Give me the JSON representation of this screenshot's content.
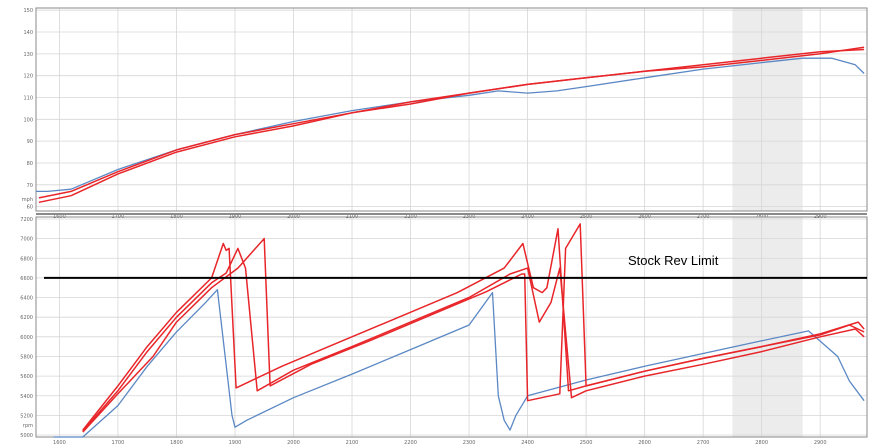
{
  "colors": {
    "background": "#ffffff",
    "grid": "#d6d6d6",
    "axis": "#8a8a8a",
    "highlight_band": "#ececec",
    "blue_series": "#5b88c4",
    "red_series": "#e8262a",
    "marker_dark": "#8b1c1c",
    "marker_blue": "#2b2fa0",
    "limit_line": "#000000"
  },
  "chart_data": [
    {
      "type": "line",
      "panel": "speed",
      "x_ticks": [
        "1600",
        "1700",
        "1800",
        "1900",
        "2000",
        "2100",
        "2200",
        "2300",
        "2400",
        "2500",
        "2600",
        "2700",
        "2800",
        "2900"
      ],
      "y_ticks": [
        "60",
        "70",
        "80",
        "90",
        "100",
        "110",
        "120",
        "130",
        "140",
        "150"
      ],
      "y_unit": "mph",
      "xlim": [
        1560,
        2980
      ],
      "ylim": [
        58,
        151
      ],
      "grid": true,
      "shaded_region_x": [
        2750,
        2870
      ],
      "series": [
        {
          "color": "blue",
          "x": [
            1560,
            1580,
            1620,
            1700,
            1800,
            1900,
            2000,
            2100,
            2200,
            2300,
            2350,
            2400,
            2450,
            2500,
            2600,
            2700,
            2800,
            2870,
            2920,
            2960,
            2975
          ],
          "y": [
            67,
            67,
            68,
            77,
            86,
            93,
            99,
            104,
            108,
            111,
            113,
            112,
            113,
            115,
            119,
            123,
            126,
            128,
            128,
            125,
            121
          ]
        },
        {
          "color": "red",
          "x": [
            1565,
            1620,
            1700,
            1800,
            1900,
            2000,
            2100,
            2200,
            2300,
            2400,
            2500,
            2600,
            2700,
            2800,
            2900,
            2975
          ],
          "y": [
            62,
            65,
            75,
            85,
            92,
            97,
            103,
            107,
            112,
            116,
            119,
            122,
            124,
            127,
            130,
            133
          ]
        },
        {
          "color": "red",
          "x": [
            1565,
            1620,
            1700,
            1800,
            1900,
            2000,
            2100,
            2200,
            2300,
            2400,
            2500,
            2600,
            2700,
            2800,
            2900,
            2975
          ],
          "y": [
            64,
            67,
            76,
            86,
            93,
            98,
            103,
            108,
            112,
            116,
            119,
            122,
            125,
            128,
            131,
            132
          ]
        }
      ]
    },
    {
      "type": "line",
      "panel": "rpm",
      "x_ticks": [
        "1600",
        "1700",
        "1800",
        "1900",
        "2000",
        "2100",
        "2200",
        "2300",
        "2400",
        "2500",
        "2600",
        "2700",
        "2800",
        "2900"
      ],
      "y_ticks": [
        "5000",
        "5200",
        "5400",
        "5600",
        "5800",
        "6000",
        "6200",
        "6400",
        "6600",
        "6800",
        "7000",
        "7200"
      ],
      "y_unit": "rpm",
      "xlim": [
        1560,
        2980
      ],
      "ylim": [
        4980,
        7220
      ],
      "grid": true,
      "shaded_region_x": [
        2750,
        2870
      ],
      "annotations": [
        {
          "text": "Stock Rev Limit",
          "y": 6600
        }
      ],
      "series": [
        {
          "color": "blue",
          "x": [
            1590,
            1640,
            1700,
            1750,
            1800,
            1850,
            1870,
            1895,
            1900,
            1920,
            2000,
            2100,
            2200,
            2300,
            2340,
            2350,
            2360,
            2370,
            2380,
            2400,
            2500,
            2600,
            2700,
            2800,
            2880,
            2930,
            2950,
            2975
          ],
          "y": [
            4980,
            4980,
            5300,
            5700,
            6050,
            6350,
            6480,
            5200,
            5080,
            5150,
            5380,
            5620,
            5870,
            6120,
            6450,
            5400,
            5150,
            5050,
            5200,
            5400,
            5560,
            5700,
            5830,
            5960,
            6060,
            5800,
            5550,
            5350
          ]
        },
        {
          "color": "red",
          "x": [
            1640,
            1700,
            1750,
            1800,
            1860,
            1880,
            1885,
            1890,
            1902,
            1980,
            2080,
            2180,
            2280,
            2360,
            2392,
            2410,
            2425,
            2433,
            2452,
            2470,
            2500,
            2600,
            2700,
            2800,
            2900,
            2950,
            2975
          ],
          "y": [
            5050,
            5500,
            5900,
            6250,
            6600,
            6950,
            6880,
            6900,
            5480,
            5700,
            5950,
            6200,
            6450,
            6700,
            6950,
            6500,
            6450,
            6500,
            7100,
            5450,
            5500,
            5650,
            5780,
            5900,
            6020,
            6120,
            6050
          ]
        },
        {
          "color": "red",
          "x": [
            1640,
            1700,
            1750,
            1800,
            1860,
            1885,
            1905,
            1918,
            1938,
            2000,
            2100,
            2200,
            2300,
            2370,
            2400,
            2420,
            2440,
            2455,
            2475,
            2500,
            2600,
            2700,
            2800,
            2900,
            2960,
            2975
          ],
          "y": [
            5040,
            5450,
            5850,
            6200,
            6550,
            6650,
            6900,
            6700,
            5450,
            5660,
            5900,
            6150,
            6400,
            6640,
            6700,
            6150,
            6350,
            6700,
            5380,
            5450,
            5600,
            5720,
            5850,
            6000,
            6080,
            6000
          ]
        },
        {
          "color": "red",
          "x": [
            1640,
            1700,
            1760,
            1800,
            1860,
            1905,
            1950,
            1960,
            2030,
            2130,
            2230,
            2330,
            2390,
            2395,
            2400,
            2455,
            2465,
            2490,
            2500,
            2600,
            2700,
            2800,
            2900,
            2965,
            2975
          ],
          "y": [
            5030,
            5420,
            5800,
            6150,
            6500,
            6700,
            7000,
            5500,
            5720,
            5960,
            6210,
            6460,
            6640,
            6640,
            5350,
            5420,
            6900,
            7150,
            5500,
            5650,
            5780,
            5900,
            6030,
            6150,
            6080
          ]
        }
      ]
    }
  ]
}
